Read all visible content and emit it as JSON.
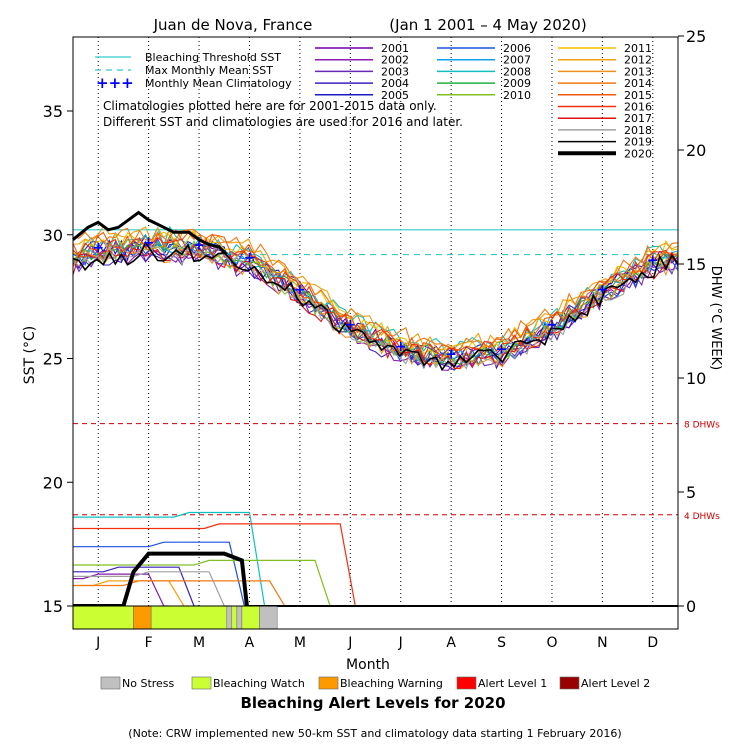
{
  "chart_data": {
    "type": "line",
    "title": "Juan de Nova, France",
    "subtitle": "(Jan 1 2001 – 4 May 2020)",
    "xlabel": "Month",
    "ylabel": "SST (°C)",
    "y2label": "DHW (°C WEEK)",
    "months": [
      "J",
      "F",
      "M",
      "A",
      "M",
      "J",
      "J",
      "A",
      "S",
      "O",
      "N",
      "D"
    ],
    "ylim": [
      14.3,
      38.1
    ],
    "y_ticks": [
      15,
      20,
      25,
      30,
      35
    ],
    "y2lim": [
      -0.5,
      25.1
    ],
    "y2_ticks": [
      0,
      5,
      10,
      15,
      20,
      25
    ],
    "bleaching_threshold_sst": 30.2,
    "max_monthly_mean_sst": 29.2,
    "dhw_lines": [
      {
        "value": 8,
        "label": "8 DHWs"
      },
      {
        "value": 4,
        "label": "4 DHWs"
      }
    ],
    "legend_left": [
      {
        "label": "Bleaching Threshold SST",
        "color": "#33cccc"
      },
      {
        "label": "Max Monthly Mean SST",
        "color": "#33cccc"
      },
      {
        "label": "Monthly Mean Climatology",
        "color": "#0000ff"
      }
    ],
    "note_lines": [
      "Climatologies plotted here are for 2001-2015 data only.",
      "Different SST and climatologies are used for 2016 and later."
    ],
    "series": [
      {
        "name": "2001",
        "color": "#6a00a8"
      },
      {
        "name": "2002",
        "color": "#8a1ab0"
      },
      {
        "name": "2003",
        "color": "#6a2ab8"
      },
      {
        "name": "2004",
        "color": "#3a20c0"
      },
      {
        "name": "2005",
        "color": "#1a1ac8"
      },
      {
        "name": "2006",
        "color": "#1a50e0"
      },
      {
        "name": "2007",
        "color": "#10a0e8"
      },
      {
        "name": "2008",
        "color": "#10c0c0"
      },
      {
        "name": "2009",
        "color": "#20b040"
      },
      {
        "name": "2010",
        "color": "#80c020"
      },
      {
        "name": "2011",
        "color": "#f0c000"
      },
      {
        "name": "2012",
        "color": "#f0a010"
      },
      {
        "name": "2013",
        "color": "#f09020"
      },
      {
        "name": "2014",
        "color": "#f07810"
      },
      {
        "name": "2015",
        "color": "#f05a10"
      },
      {
        "name": "2016",
        "color": "#f03010"
      },
      {
        "name": "2017",
        "color": "#e01010"
      },
      {
        "name": "2018",
        "color": "#a0a0a0"
      },
      {
        "name": "2019",
        "color": "#000000"
      },
      {
        "name": "2020",
        "color": "#000000"
      }
    ],
    "sst_climatology": [
      [
        0.5,
        29.5
      ],
      [
        1.5,
        29.7
      ],
      [
        2.5,
        29.6
      ],
      [
        3.5,
        29.1
      ],
      [
        4.5,
        27.8
      ],
      [
        5.5,
        26.4
      ],
      [
        6.5,
        25.5
      ],
      [
        7.5,
        25.2
      ],
      [
        8.5,
        25.4
      ],
      [
        9.5,
        26.4
      ],
      [
        10.5,
        27.8
      ],
      [
        11.5,
        29.0
      ]
    ],
    "sst_2020": [
      [
        0.0,
        29.8
      ],
      [
        0.3,
        30.3
      ],
      [
        0.5,
        30.5
      ],
      [
        0.7,
        30.2
      ],
      [
        0.9,
        30.3
      ],
      [
        1.1,
        30.6
      ],
      [
        1.3,
        30.9
      ],
      [
        1.5,
        30.6
      ],
      [
        1.8,
        30.3
      ],
      [
        2.0,
        30.1
      ],
      [
        2.3,
        30.1
      ],
      [
        2.5,
        29.8
      ],
      [
        2.7,
        29.6
      ],
      [
        2.9,
        29.5
      ],
      [
        3.05,
        29.2
      ]
    ],
    "dhw_2020": [
      [
        0.0,
        0
      ],
      [
        1.0,
        0
      ],
      [
        1.2,
        1.5
      ],
      [
        1.5,
        2.3
      ],
      [
        2.0,
        2.3
      ],
      [
        2.5,
        2.3
      ],
      [
        3.0,
        2.3
      ],
      [
        3.35,
        2.0
      ],
      [
        3.45,
        0
      ]
    ],
    "alert_levels": [
      {
        "label": "No Stress",
        "color": "#c0c0c0"
      },
      {
        "label": "Bleaching Watch",
        "color": "#ccff33"
      },
      {
        "label": "Bleaching Warning",
        "color": "#ff9900"
      },
      {
        "label": "Alert Level 1",
        "color": "#ff0000"
      },
      {
        "label": "Alert Level 2",
        "color": "#990000"
      }
    ],
    "alert_bar": [
      [
        0.0,
        1.2,
        "Bleaching Watch"
      ],
      [
        1.2,
        1.55,
        "Bleaching Warning"
      ],
      [
        1.55,
        3.05,
        "Bleaching Watch"
      ],
      [
        3.05,
        3.15,
        "No Stress"
      ],
      [
        3.15,
        3.25,
        "Bleaching Watch"
      ],
      [
        3.25,
        3.35,
        "No Stress"
      ],
      [
        3.35,
        3.7,
        "Bleaching Watch"
      ],
      [
        3.7,
        4.05,
        "No Stress"
      ]
    ]
  },
  "footer": {
    "alert_title": "Bleaching Alert Levels for 2020",
    "note": "(Note: CRW implemented new 50-km SST and climatology data starting 1 February 2016)"
  }
}
